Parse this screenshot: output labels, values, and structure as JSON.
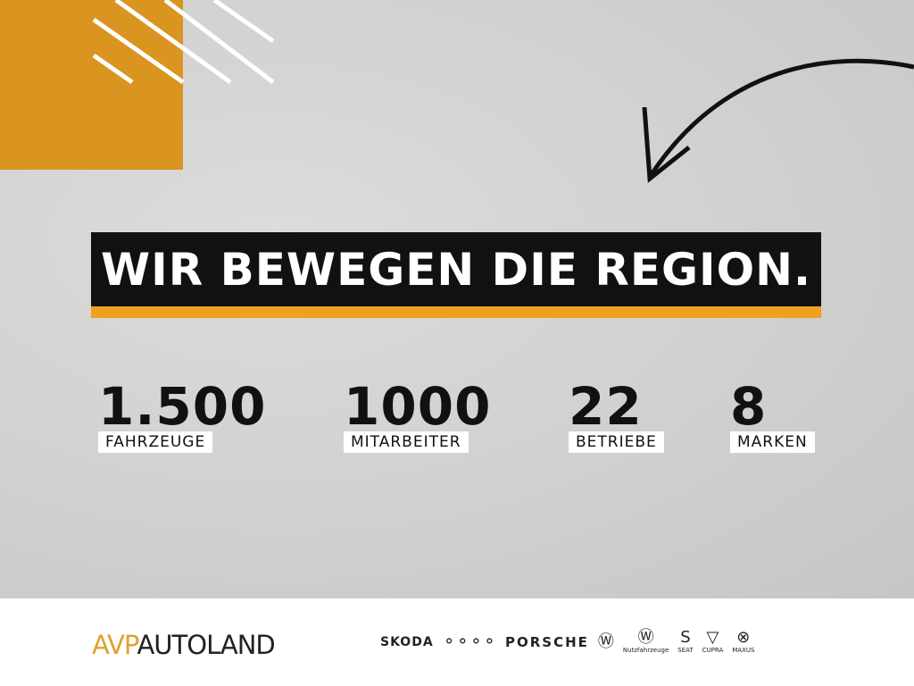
{
  "headline": "WIR BEWEGEN DIE REGION.",
  "stats": [
    {
      "value": "1.500",
      "label": "FAHRZEUGE"
    },
    {
      "value": "1000",
      "label": "MITARBEITER"
    },
    {
      "value": "22",
      "label": "BETRIEBE"
    },
    {
      "value": "8",
      "label": "MARKEN"
    }
  ],
  "footer": {
    "logo_prefix": "AVP",
    "logo_name": "AUTOLAND",
    "brands": [
      "SKODA",
      "PORSCHE"
    ],
    "small_brands": [
      "Nutzfahrzeuge",
      "SEAT",
      "CUPRA",
      "MAXUS"
    ]
  },
  "colors": {
    "accent": "#d9951f",
    "banner": "#111111"
  }
}
